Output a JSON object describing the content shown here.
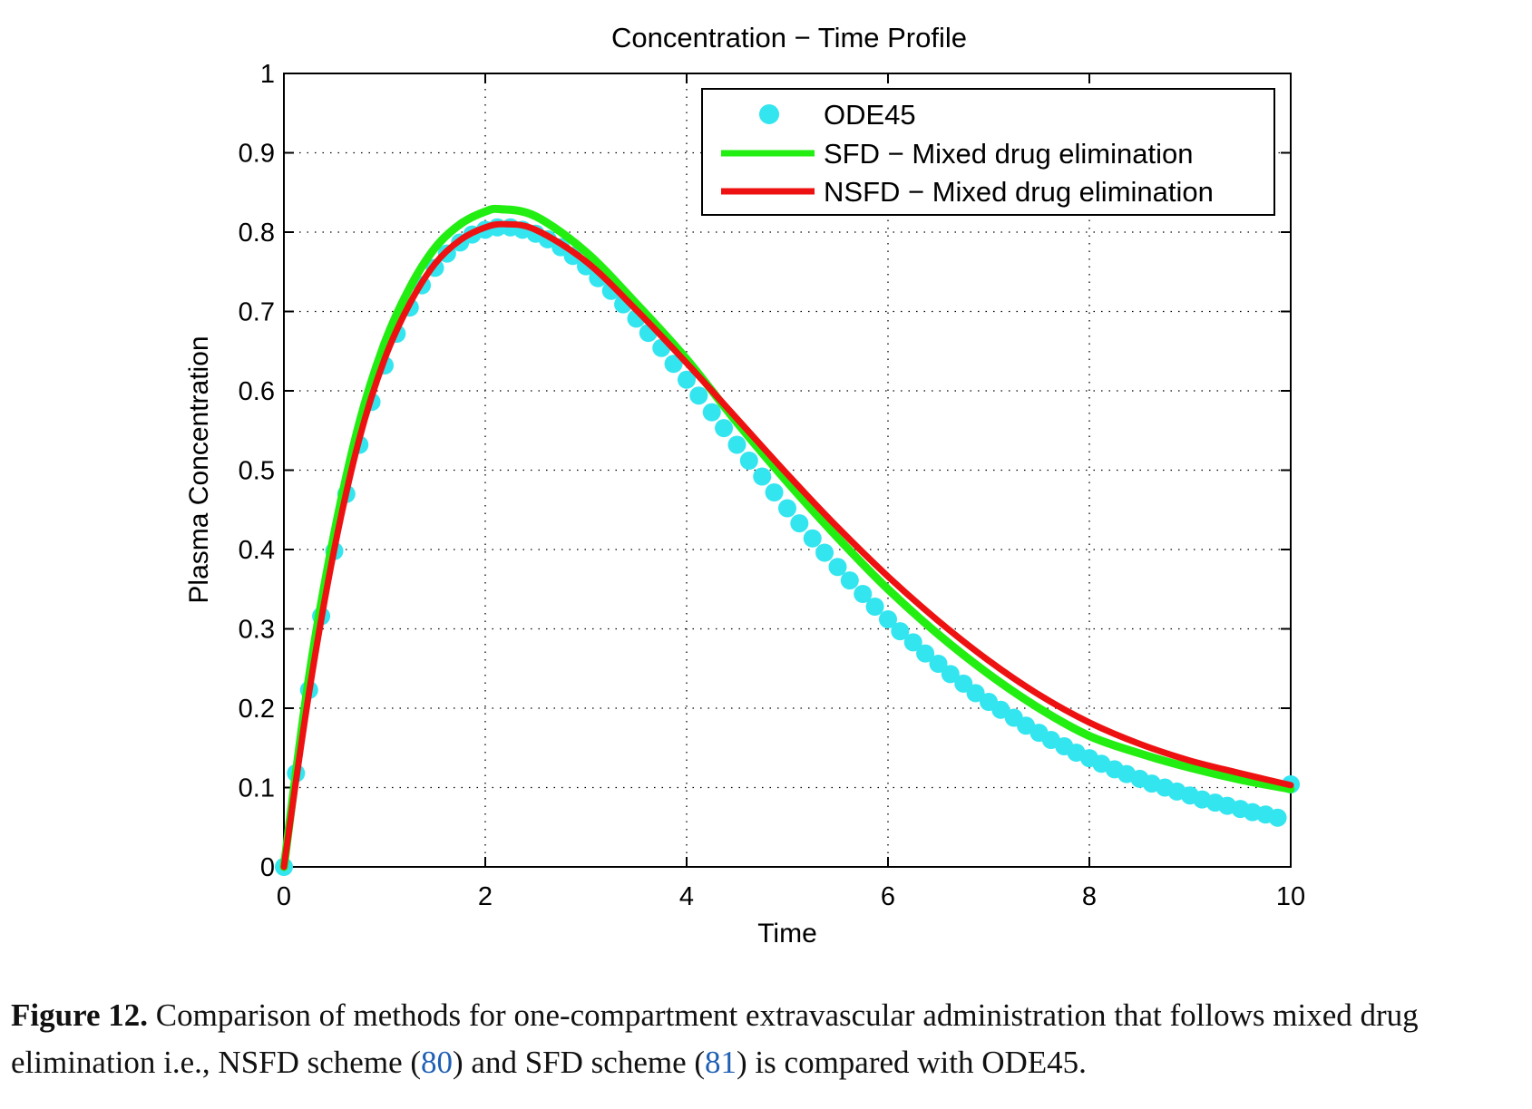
{
  "chart_data": {
    "type": "line",
    "title": "Concentration − Time Profile",
    "xlabel": "Time",
    "ylabel": "Plasma Concentration",
    "xlim": [
      0,
      10
    ],
    "ylim": [
      0,
      1
    ],
    "xticks": [
      "0",
      "2",
      "4",
      "6",
      "8",
      "10"
    ],
    "yticks": [
      "0",
      "0.1",
      "0.2",
      "0.3",
      "0.4",
      "0.5",
      "0.6",
      "0.7",
      "0.8",
      "0.9",
      "1"
    ],
    "grid": true,
    "legend_position": "top-right",
    "series": [
      {
        "name": "ODE45",
        "style": "markers",
        "color": "#33e5ef",
        "x": [
          0,
          0.12,
          0.25,
          0.37,
          0.5,
          0.62,
          0.75,
          0.87,
          1.0,
          1.12,
          1.25,
          1.37,
          1.5,
          1.62,
          1.75,
          1.87,
          2.0,
          2.12,
          2.25,
          2.37,
          2.5,
          2.62,
          2.75,
          2.87,
          3.0,
          3.12,
          3.25,
          3.37,
          3.5,
          3.62,
          3.75,
          3.87,
          4.0,
          4.12,
          4.25,
          4.37,
          4.5,
          4.62,
          4.75,
          4.87,
          5.0,
          5.12,
          5.25,
          5.37,
          5.5,
          5.62,
          5.75,
          5.87,
          6.0,
          6.12,
          6.25,
          6.37,
          6.5,
          6.62,
          6.75,
          6.87,
          7.0,
          7.12,
          7.25,
          7.37,
          7.5,
          7.62,
          7.75,
          7.87,
          8.0,
          8.12,
          8.25,
          8.37,
          8.5,
          8.62,
          8.75,
          8.87,
          9.0,
          9.12,
          9.25,
          9.37,
          9.5,
          9.62,
          9.75,
          9.87,
          10.0
        ],
        "y": [
          0.0,
          0.118,
          0.223,
          0.316,
          0.398,
          0.47,
          0.532,
          0.586,
          0.632,
          0.672,
          0.705,
          0.733,
          0.755,
          0.773,
          0.787,
          0.797,
          0.803,
          0.806,
          0.806,
          0.803,
          0.798,
          0.791,
          0.781,
          0.77,
          0.757,
          0.742,
          0.726,
          0.709,
          0.691,
          0.673,
          0.654,
          0.634,
          0.614,
          0.594,
          0.573,
          0.553,
          0.532,
          0.512,
          0.492,
          0.472,
          0.452,
          0.433,
          0.414,
          0.396,
          0.378,
          0.361,
          0.344,
          0.328,
          0.312,
          0.297,
          0.283,
          0.269,
          0.256,
          0.243,
          0.231,
          0.219,
          0.208,
          0.198,
          0.188,
          0.178,
          0.169,
          0.16,
          0.152,
          0.144,
          0.137,
          0.13,
          0.123,
          0.117,
          0.111,
          0.105,
          0.1,
          0.095,
          0.09,
          0.085,
          0.081,
          0.077,
          0.073,
          0.069,
          0.066,
          0.062,
          0.104
        ]
      },
      {
        "name": "SFD − Mixed drug elimination",
        "style": "line",
        "color": "#22ee11",
        "x": [
          0,
          0.25,
          0.5,
          0.75,
          1.0,
          1.25,
          1.5,
          1.75,
          2.0,
          2.15,
          2.5,
          3.0,
          3.5,
          4.0,
          4.5,
          5.0,
          5.5,
          6.0,
          6.5,
          7.0,
          7.5,
          8.0,
          8.5,
          9.0,
          9.5,
          10.0
        ],
        "y": [
          0.0,
          0.24,
          0.42,
          0.56,
          0.66,
          0.73,
          0.78,
          0.81,
          0.826,
          0.829,
          0.82,
          0.775,
          0.71,
          0.64,
          0.56,
          0.485,
          0.415,
          0.35,
          0.293,
          0.243,
          0.2,
          0.165,
          0.143,
          0.125,
          0.11,
          0.098
        ]
      },
      {
        "name": "NSFD − Mixed drug elimination",
        "style": "line",
        "color": "#ee1111",
        "x": [
          0,
          0.25,
          0.5,
          0.75,
          1.0,
          1.25,
          1.5,
          1.75,
          2.0,
          2.2,
          2.5,
          3.0,
          3.5,
          4.0,
          4.5,
          5.0,
          5.5,
          6.0,
          6.5,
          7.0,
          7.5,
          8.0,
          8.5,
          9.0,
          9.5,
          10.0
        ],
        "y": [
          0.0,
          0.22,
          0.4,
          0.54,
          0.64,
          0.71,
          0.76,
          0.79,
          0.806,
          0.81,
          0.803,
          0.763,
          0.702,
          0.635,
          0.565,
          0.495,
          0.428,
          0.366,
          0.31,
          0.26,
          0.217,
          0.182,
          0.155,
          0.134,
          0.118,
          0.103
        ]
      }
    ]
  },
  "caption": {
    "lead": "Figure 12.",
    "text_1": " Comparison of methods for one-compartment extravascular administration that follows mixed drug elimination i.e., NSFD scheme (",
    "ref_1": "80",
    "text_2": ") and SFD scheme (",
    "ref_2": "81",
    "text_3": ") is compared with ODE45."
  }
}
